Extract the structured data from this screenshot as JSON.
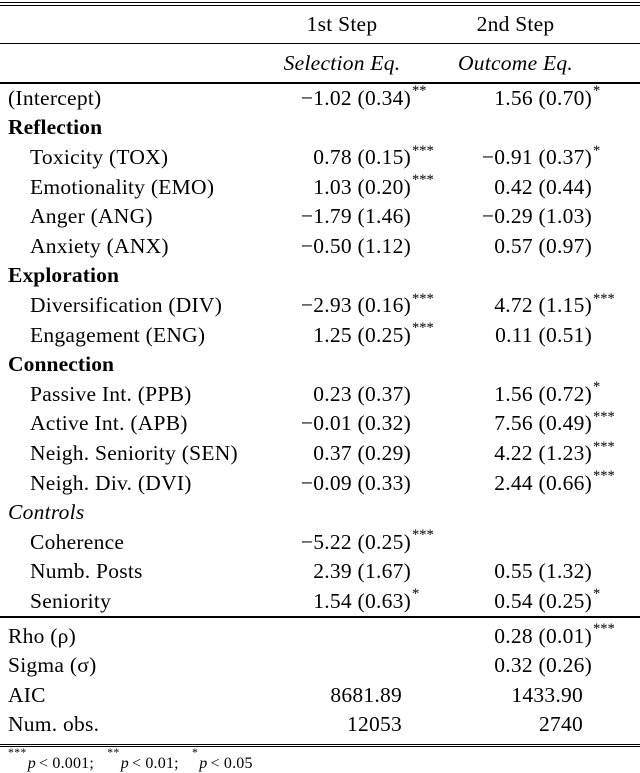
{
  "colors": {
    "text": "#000000",
    "background": "#ffffff",
    "rule": "#000000"
  },
  "table": {
    "step_headers": {
      "col1": "1st Step",
      "col2": "2nd Step"
    },
    "eq_headers": {
      "selection": "Selection Eq.",
      "outcome": "Outcome Eq."
    },
    "rows": [
      {
        "label": "(Intercept)",
        "style": "normal",
        "indent": false,
        "sel": "−1.02 (0.34)",
        "sel_stars": "**",
        "out": "1.56 (0.70)",
        "out_stars": "*"
      },
      {
        "label": "Reflection",
        "style": "bold",
        "indent": false,
        "sel": "",
        "sel_stars": "",
        "out": "",
        "out_stars": ""
      },
      {
        "label": "Toxicity (TOX)",
        "style": "normal",
        "indent": true,
        "sel": "0.78 (0.15)",
        "sel_stars": "***",
        "out": "−0.91 (0.37)",
        "out_stars": "*"
      },
      {
        "label": "Emotionality (EMO)",
        "style": "normal",
        "indent": true,
        "sel": "1.03 (0.20)",
        "sel_stars": "***",
        "out": "0.42 (0.44)",
        "out_stars": ""
      },
      {
        "label": "Anger (ANG)",
        "style": "normal",
        "indent": true,
        "sel": "−1.79 (1.46)",
        "sel_stars": "",
        "out": "−0.29 (1.03)",
        "out_stars": ""
      },
      {
        "label": "Anxiety (ANX)",
        "style": "normal",
        "indent": true,
        "sel": "−0.50 (1.12)",
        "sel_stars": "",
        "out": "0.57 (0.97)",
        "out_stars": ""
      },
      {
        "label": "Exploration",
        "style": "bold",
        "indent": false,
        "sel": "",
        "sel_stars": "",
        "out": "",
        "out_stars": ""
      },
      {
        "label": "Diversification (DIV)",
        "style": "normal",
        "indent": true,
        "sel": "−2.93 (0.16)",
        "sel_stars": "***",
        "out": "4.72 (1.15)",
        "out_stars": "***"
      },
      {
        "label": "Engagement (ENG)",
        "style": "normal",
        "indent": true,
        "sel": "1.25 (0.25)",
        "sel_stars": "***",
        "out": "0.11 (0.51)",
        "out_stars": ""
      },
      {
        "label": "Connection",
        "style": "bold",
        "indent": false,
        "sel": "",
        "sel_stars": "",
        "out": "",
        "out_stars": ""
      },
      {
        "label": "Passive Int. (PPB)",
        "style": "normal",
        "indent": true,
        "sel": "0.23 (0.37)",
        "sel_stars": "",
        "out": "1.56 (0.72)",
        "out_stars": "*"
      },
      {
        "label": "Active Int. (APB)",
        "style": "normal",
        "indent": true,
        "sel": "−0.01 (0.32)",
        "sel_stars": "",
        "out": "7.56 (0.49)",
        "out_stars": "***"
      },
      {
        "label": "Neigh. Seniority (SEN)",
        "style": "normal",
        "indent": true,
        "sel": "0.37 (0.29)",
        "sel_stars": "",
        "out": "4.22 (1.23)",
        "out_stars": "***"
      },
      {
        "label": "Neigh. Div. (DVI)",
        "style": "normal",
        "indent": true,
        "sel": "−0.09 (0.33)",
        "sel_stars": "",
        "out": "2.44 (0.66)",
        "out_stars": "***"
      },
      {
        "label": "Controls",
        "style": "italic",
        "indent": false,
        "sel": "",
        "sel_stars": "",
        "out": "",
        "out_stars": ""
      },
      {
        "label": "Coherence",
        "style": "normal",
        "indent": true,
        "sel": "−5.22 (0.25)",
        "sel_stars": "***",
        "out": "",
        "out_stars": ""
      },
      {
        "label": "Numb. Posts",
        "style": "normal",
        "indent": true,
        "sel": "2.39 (1.67)",
        "sel_stars": "",
        "out": "0.55 (1.32)",
        "out_stars": ""
      },
      {
        "label": "Seniority",
        "style": "normal",
        "indent": true,
        "sel": "1.54 (0.63)",
        "sel_stars": "*",
        "out": "0.54 (0.25)",
        "out_stars": "*"
      }
    ],
    "stats_rows": [
      {
        "label": "Rho (ρ)",
        "style": "normal",
        "indent": false,
        "sel": "",
        "sel_stars": "",
        "out": "0.28 (0.01)",
        "out_stars": "***"
      },
      {
        "label": "Sigma (σ)",
        "style": "normal",
        "indent": false,
        "sel": "",
        "sel_stars": "",
        "out": "0.32 (0.26)",
        "out_stars": ""
      },
      {
        "label": "AIC",
        "style": "normal",
        "indent": false,
        "sel": "8681.89",
        "sel_stars": "",
        "out": "1433.90",
        "out_stars": ""
      },
      {
        "label": "Num. obs.",
        "style": "normal",
        "indent": false,
        "sel": "12053",
        "sel_stars": "",
        "out": "2740",
        "out_stars": ""
      }
    ],
    "footnote": {
      "seg1": {
        "stars": "***",
        "var": "p",
        "cond": "< 0.001;"
      },
      "seg2": {
        "stars": "**",
        "var": "p",
        "cond": "< 0.01;"
      },
      "seg3": {
        "stars": "*",
        "var": "p",
        "cond": "< 0.05"
      }
    }
  }
}
